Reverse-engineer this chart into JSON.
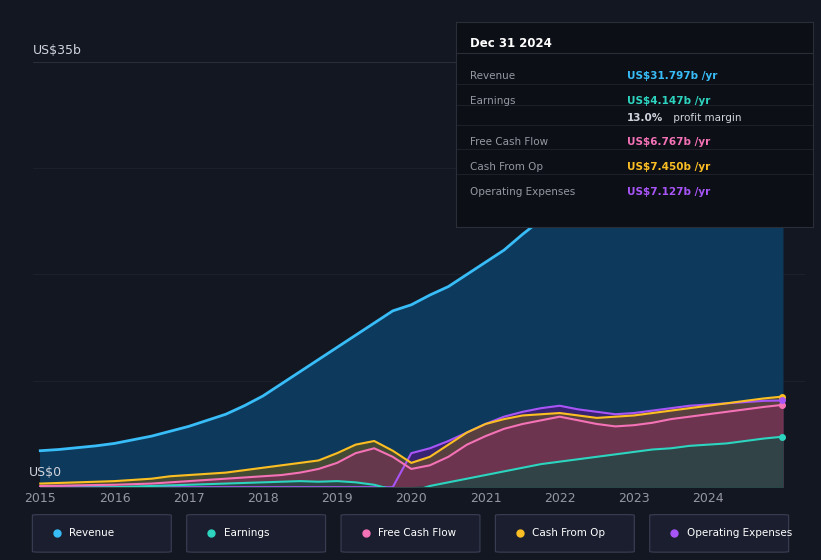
{
  "bg_color": "#131722",
  "plot_bg_color": "#131722",
  "title_box": {
    "date": "Dec 31 2024",
    "rows": [
      {
        "label": "Revenue",
        "value": "US$31.797b /yr",
        "value_color": "#38bdf8"
      },
      {
        "label": "Earnings",
        "value": "US$4.147b /yr",
        "value_color": "#2dd4bf"
      },
      {
        "label": "",
        "value": "13.0% profit margin",
        "value_color": "#ffffff"
      },
      {
        "label": "Free Cash Flow",
        "value": "US$6.767b /yr",
        "value_color": "#f472b6"
      },
      {
        "label": "Cash From Op",
        "value": "US$7.450b /yr",
        "value_color": "#fbbf24"
      },
      {
        "label": "Operating Expenses",
        "value": "US$7.127b /yr",
        "value_color": "#a855f7"
      }
    ]
  },
  "years": [
    2015.0,
    2015.25,
    2015.5,
    2015.75,
    2016.0,
    2016.25,
    2016.5,
    2016.75,
    2017.0,
    2017.25,
    2017.5,
    2017.75,
    2018.0,
    2018.25,
    2018.5,
    2018.75,
    2019.0,
    2019.25,
    2019.5,
    2019.75,
    2020.0,
    2020.25,
    2020.5,
    2020.75,
    2021.0,
    2021.25,
    2021.5,
    2021.75,
    2022.0,
    2022.25,
    2022.5,
    2022.75,
    2023.0,
    2023.25,
    2023.5,
    2023.75,
    2024.0,
    2024.25,
    2024.5,
    2024.75,
    2025.0
  ],
  "revenue": [
    3.0,
    3.1,
    3.25,
    3.4,
    3.6,
    3.9,
    4.2,
    4.6,
    5.0,
    5.5,
    6.0,
    6.7,
    7.5,
    8.5,
    9.5,
    10.5,
    11.5,
    12.5,
    13.5,
    14.5,
    15.0,
    15.8,
    16.5,
    17.5,
    18.5,
    19.5,
    20.8,
    22.0,
    23.2,
    24.3,
    25.2,
    26.0,
    26.8,
    27.5,
    28.3,
    29.2,
    30.0,
    30.6,
    31.0,
    31.5,
    31.8
  ],
  "earnings": [
    -0.1,
    -0.08,
    -0.05,
    -0.02,
    0.0,
    0.05,
    0.1,
    0.15,
    0.2,
    0.25,
    0.3,
    0.35,
    0.4,
    0.45,
    0.5,
    0.45,
    0.5,
    0.4,
    0.2,
    -0.2,
    -0.4,
    0.1,
    0.4,
    0.7,
    1.0,
    1.3,
    1.6,
    1.9,
    2.1,
    2.3,
    2.5,
    2.7,
    2.9,
    3.1,
    3.2,
    3.4,
    3.5,
    3.6,
    3.8,
    4.0,
    4.15
  ],
  "free_cash_flow": [
    0.1,
    0.12,
    0.15,
    0.18,
    0.2,
    0.25,
    0.3,
    0.4,
    0.5,
    0.6,
    0.7,
    0.8,
    0.9,
    1.0,
    1.2,
    1.5,
    2.0,
    2.8,
    3.2,
    2.5,
    1.5,
    1.8,
    2.5,
    3.5,
    4.2,
    4.8,
    5.2,
    5.5,
    5.8,
    5.5,
    5.2,
    5.0,
    5.1,
    5.3,
    5.6,
    5.8,
    6.0,
    6.2,
    6.4,
    6.6,
    6.77
  ],
  "cash_from_op": [
    0.3,
    0.35,
    0.4,
    0.45,
    0.5,
    0.6,
    0.7,
    0.9,
    1.0,
    1.1,
    1.2,
    1.4,
    1.6,
    1.8,
    2.0,
    2.2,
    2.8,
    3.5,
    3.8,
    3.0,
    2.0,
    2.5,
    3.5,
    4.5,
    5.2,
    5.6,
    5.9,
    6.0,
    6.1,
    5.9,
    5.7,
    5.8,
    5.9,
    6.1,
    6.3,
    6.5,
    6.7,
    6.9,
    7.1,
    7.3,
    7.45
  ],
  "operating_expenses": [
    0.0,
    0.0,
    0.0,
    0.0,
    0.0,
    0.0,
    0.0,
    0.0,
    0.0,
    0.0,
    0.0,
    0.0,
    0.0,
    0.0,
    0.0,
    0.0,
    0.0,
    0.0,
    0.0,
    0.0,
    2.8,
    3.2,
    3.8,
    4.5,
    5.2,
    5.8,
    6.2,
    6.5,
    6.7,
    6.4,
    6.2,
    6.0,
    6.1,
    6.3,
    6.5,
    6.7,
    6.8,
    6.9,
    7.0,
    7.1,
    7.13
  ],
  "revenue_color": "#38bdf8",
  "earnings_color": "#2dd4bf",
  "free_cash_flow_color": "#f472b6",
  "cash_from_op_color": "#fbbf24",
  "operating_expenses_color": "#a855f7",
  "revenue_fill_color": "#0d3a5c",
  "earnings_fill_color": "#1a4a45",
  "free_cash_flow_fill_color": "#7c2d5a",
  "cash_from_op_fill_color": "#7a5c10",
  "operating_expenses_fill_color": "#4a1a7a",
  "ylim": [
    0,
    35
  ],
  "xlim": [
    2014.9,
    2025.3
  ],
  "ylabel": "US$35b",
  "y0label": "US$0",
  "grid_color": "#2a2e39",
  "text_color": "#9598a1",
  "axis_label_color": "#d1d4dc",
  "legend_items": [
    {
      "label": "Revenue",
      "color": "#38bdf8"
    },
    {
      "label": "Earnings",
      "color": "#2dd4bf"
    },
    {
      "label": "Free Cash Flow",
      "color": "#f472b6"
    },
    {
      "label": "Cash From Op",
      "color": "#fbbf24"
    },
    {
      "label": "Operating Expenses",
      "color": "#a855f7"
    }
  ]
}
